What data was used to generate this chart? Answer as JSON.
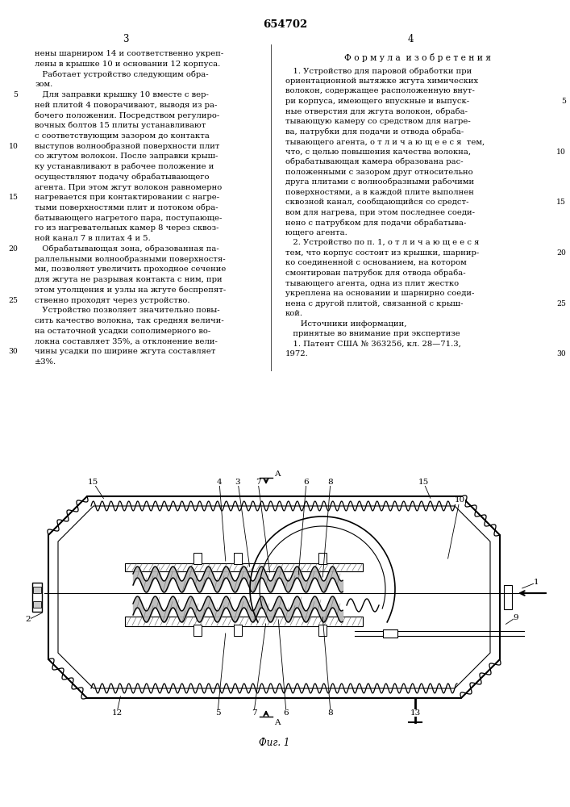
{
  "patent_number": "654702",
  "page_left_number": "3",
  "page_right_number": "4",
  "left_column_text": [
    "нены шарниром 14 и соответственно укреп-",
    "лены в крышке 10 и основании 12 корпуса.",
    "   Работает устройство следующим обра-",
    "зом.",
    "   Для заправки крышку 10 вместе с вер-",
    "ней плитой 4 поворачивают, выводя из ра-",
    "бочего положения. Посредством регулиро-",
    "вочных болтов 15 плиты устанавливают",
    "с соответствующим зазором до контакта",
    "выступов волнообразной поверхности плит",
    "со жгутом волокон. После заправки крыш-",
    "ку устанавливают в рабочее положение и",
    "осуществляют подачу обрабатывающего",
    "агента. При этом жгут волокон равномерно",
    "нагревается при контактировании с нагре-",
    "тыми поверхностями плит и потоком обра-",
    "батывающего нагретого пара, поступающе-",
    "го из нагревательных камер 8 через сквоз-",
    "ной канал 7 в плитах 4 и 5.",
    "   Обрабатывающая зона, образованная па-",
    "раллельными волнообразными поверхностя-",
    "ми, позволяет увеличить проходное сечение",
    "для жгута не разрывая контакта с ним, при",
    "этом утолщения и узлы на жгуте беспрепят-",
    "ственно проходят через устройство.",
    "   Устройство позволяет значительно повы-",
    "сить качество волокна, так средняя величи-",
    "на остаточной усадки сополимерного во-",
    "локна составляет 35%, а отклонение вели-",
    "чины усадки по ширине жгута составляет",
    "±3%."
  ],
  "right_column_header": "Ф о р м у л а  и з о б р е т е н и я",
  "right_column_text": [
    "   1. Устройство для паровой обработки при",
    "ориентационной вытяжке жгута химических",
    "волокон, содержащее расположенную внут-",
    "ри корпуса, имеющего впускные и выпуск-",
    "ные отверстия для жгута волокон, обраба-",
    "тывающую камеру со средством для нагре-",
    "ва, патрубки для подачи и отвода обраба-",
    "тывающего агента, о т л и ч а ю щ е е с я  тем,",
    "что, с целью повышения качества волокна,",
    "обрабатывающая камера образована рас-",
    "положенными с зазором друг относительно",
    "друга плитами с волнообразными рабочими",
    "поверхностями, а в каждой плите выполнен",
    "сквозной канал, сообщающийся со средст-",
    "вом для нагрева, при этом последнее соеди-",
    "нено с патрубком для подачи обрабатыва-",
    "ющего агента.",
    "   2. Устройство по п. 1, о т л и ч а ю щ е е с я",
    "тем, что корпус состоит из крышки, шарнир-",
    "ко соединенной с основанием, на котором",
    "смонтирован патрубок для отвода обраба-",
    "тывающего агента, одна из плит жестко",
    "укреплена на основании и шарнирно соеди-",
    "нена с другой плитой, связанной с крыш-",
    "кой.",
    "      Источники информации,",
    "   принятые во внимание при экспертизе",
    "   1. Патент США № 363256, кл. 28—71.3,",
    "1972."
  ],
  "line_numbers": [
    5,
    10,
    15,
    20,
    25,
    30
  ],
  "figure_label": "Фиг. 1",
  "bg_color": "#ffffff",
  "text_color": "#000000",
  "font_size_body": 7.2,
  "font_size_header": 8.0,
  "font_size_patent": 9.5,
  "font_size_page": 8.5
}
